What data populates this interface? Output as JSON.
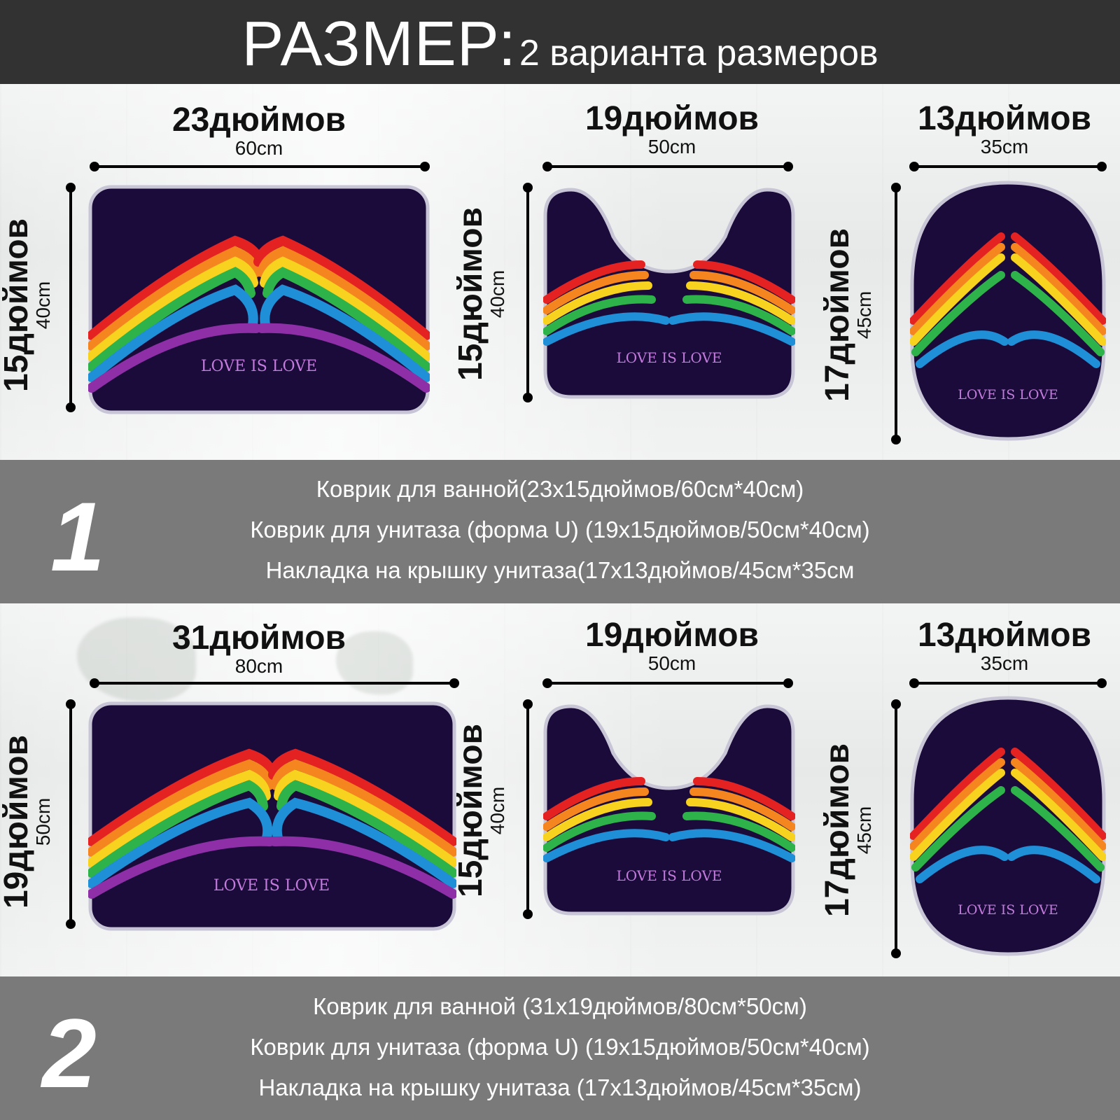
{
  "header": {
    "title": "РАЗМЕР:",
    "subtitle": "2 варианта размеров"
  },
  "mat_text": "LOVE IS LOVE",
  "colors": {
    "mat_bg": "#1a0b3a",
    "band": "#7a7a7a",
    "header": "#323232"
  },
  "set1": {
    "number": "1",
    "bath": {
      "width_in": "23дюймов",
      "width_cm": "60cm",
      "height_in": "15дюймов",
      "height_cm": "40cm"
    },
    "contour": {
      "width_in": "19дюймов",
      "width_cm": "50cm",
      "height_in": "15дюймов",
      "height_cm": "40cm"
    },
    "lid": {
      "width_in": "13дюймов",
      "width_cm": "35cm",
      "height_in": "17дюймов",
      "height_cm": "45cm"
    },
    "lines": [
      "Коврик для ванной(23x15дюймов/60см*40см)",
      "Коврик для унитаза (форма U) (19x15дюймов/50см*40см)",
      "Накладка на крышку унитаза(17x13дюймов/45см*35см"
    ]
  },
  "set2": {
    "number": "2",
    "bath": {
      "width_in": "31дюймов",
      "width_cm": "80cm",
      "height_in": "19дюймов",
      "height_cm": "50cm"
    },
    "contour": {
      "width_in": "19дюймов",
      "width_cm": "50cm",
      "height_in": "15дюймов",
      "height_cm": "40cm"
    },
    "lid": {
      "width_in": "13дюймов",
      "width_cm": "35cm",
      "height_in": "17дюймов",
      "height_cm": "45cm"
    },
    "lines": [
      "Коврик для ванной (31x19дюймов/80см*50см)",
      "Коврик для унитаза (форма U) (19x15дюймов/50см*40см)",
      "Накладка на крышку унитаза (17x13дюймов/45см*35см)"
    ]
  }
}
